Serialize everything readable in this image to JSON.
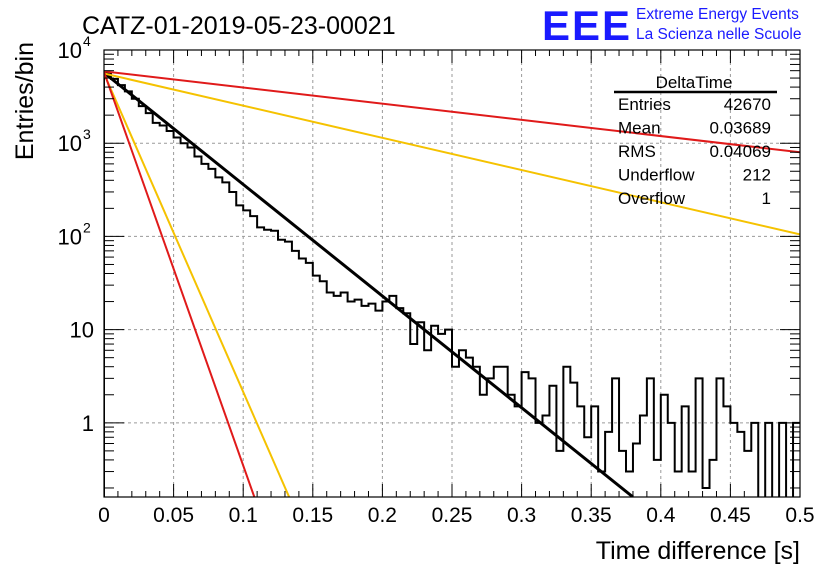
{
  "header": {
    "run_title": "CATZ-01-2019-05-23-00021",
    "logo_text": "EEE",
    "org_line1": "Extreme Energy Events",
    "org_line2": "La Scienza nelle Scuole",
    "brand_color": "#1a1aff"
  },
  "stats": {
    "name": "DeltaTime",
    "rows": [
      {
        "label": "Entries",
        "value": "42670"
      },
      {
        "label": "Mean",
        "value": "0.03689"
      },
      {
        "label": "RMS",
        "value": "0.04069"
      },
      {
        "label": "Underflow",
        "value": "212"
      },
      {
        "label": "Overflow",
        "value": "1"
      }
    ]
  },
  "chart_data": {
    "type": "line",
    "xlabel": "Time difference [s]",
    "ylabel": "Entries/bin",
    "xlim": [
      0,
      0.5
    ],
    "ylim": [
      0.16,
      10000
    ],
    "yscale": "log",
    "grid": true,
    "x_ticks": [
      "0",
      "0.05",
      "0.1",
      "0.15",
      "0.2",
      "0.25",
      "0.3",
      "0.35",
      "0.4",
      "0.45",
      "0.5"
    ],
    "y_ticks": [
      {
        "value": 1,
        "base": "1",
        "exp": ""
      },
      {
        "value": 10,
        "base": "10",
        "exp": ""
      },
      {
        "value": 100,
        "base": "10",
        "exp": "2"
      },
      {
        "value": 1000,
        "base": "10",
        "exp": "3"
      },
      {
        "value": 10000,
        "base": "10",
        "exp": "4"
      }
    ],
    "histogram": {
      "color": "#000000",
      "bin_width": 0.005,
      "values": [
        5700,
        4900,
        4200,
        3600,
        3000,
        2500,
        2100,
        1650,
        1550,
        1350,
        1150,
        1000,
        900,
        720,
        600,
        530,
        430,
        380,
        300,
        215,
        190,
        165,
        125,
        118,
        115,
        92,
        88,
        70,
        58,
        52,
        38,
        33,
        25,
        23,
        25,
        20,
        21,
        18,
        19,
        16,
        20,
        23,
        17,
        15,
        7,
        12,
        6,
        11,
        9,
        10,
        4,
        6,
        5,
        4,
        2,
        3,
        4,
        4,
        2,
        1.5,
        3.5,
        3,
        1,
        1.2,
        2.5,
        0.5,
        4,
        2.7,
        1.5,
        0.7,
        1.5,
        0.3,
        0.8,
        3,
        0.5,
        0.3,
        0.6,
        1.2,
        3,
        0.4,
        2,
        1,
        0.3,
        1.5,
        0.3,
        3,
        0.2,
        0.4,
        3,
        1.5,
        1,
        0.8,
        0.5,
        1,
        0.1,
        1,
        0.1,
        1,
        0.1,
        1
      ]
    },
    "series": [
      {
        "color": "#000000",
        "x": [
          0,
          0.38
        ],
        "y": [
          5700,
          0.16
        ]
      },
      {
        "color": "#e01a1a",
        "x": [
          0,
          0.5
        ],
        "y": [
          5900,
          800
        ]
      },
      {
        "color": "#f5c200",
        "x": [
          0,
          0.5
        ],
        "y": [
          5600,
          105
        ]
      },
      {
        "color": "#f5c200",
        "x": [
          0,
          0.133
        ],
        "y": [
          5600,
          0.16
        ]
      },
      {
        "color": "#e01a1a",
        "x": [
          0,
          0.108
        ],
        "y": [
          5800,
          0.16
        ]
      }
    ]
  }
}
